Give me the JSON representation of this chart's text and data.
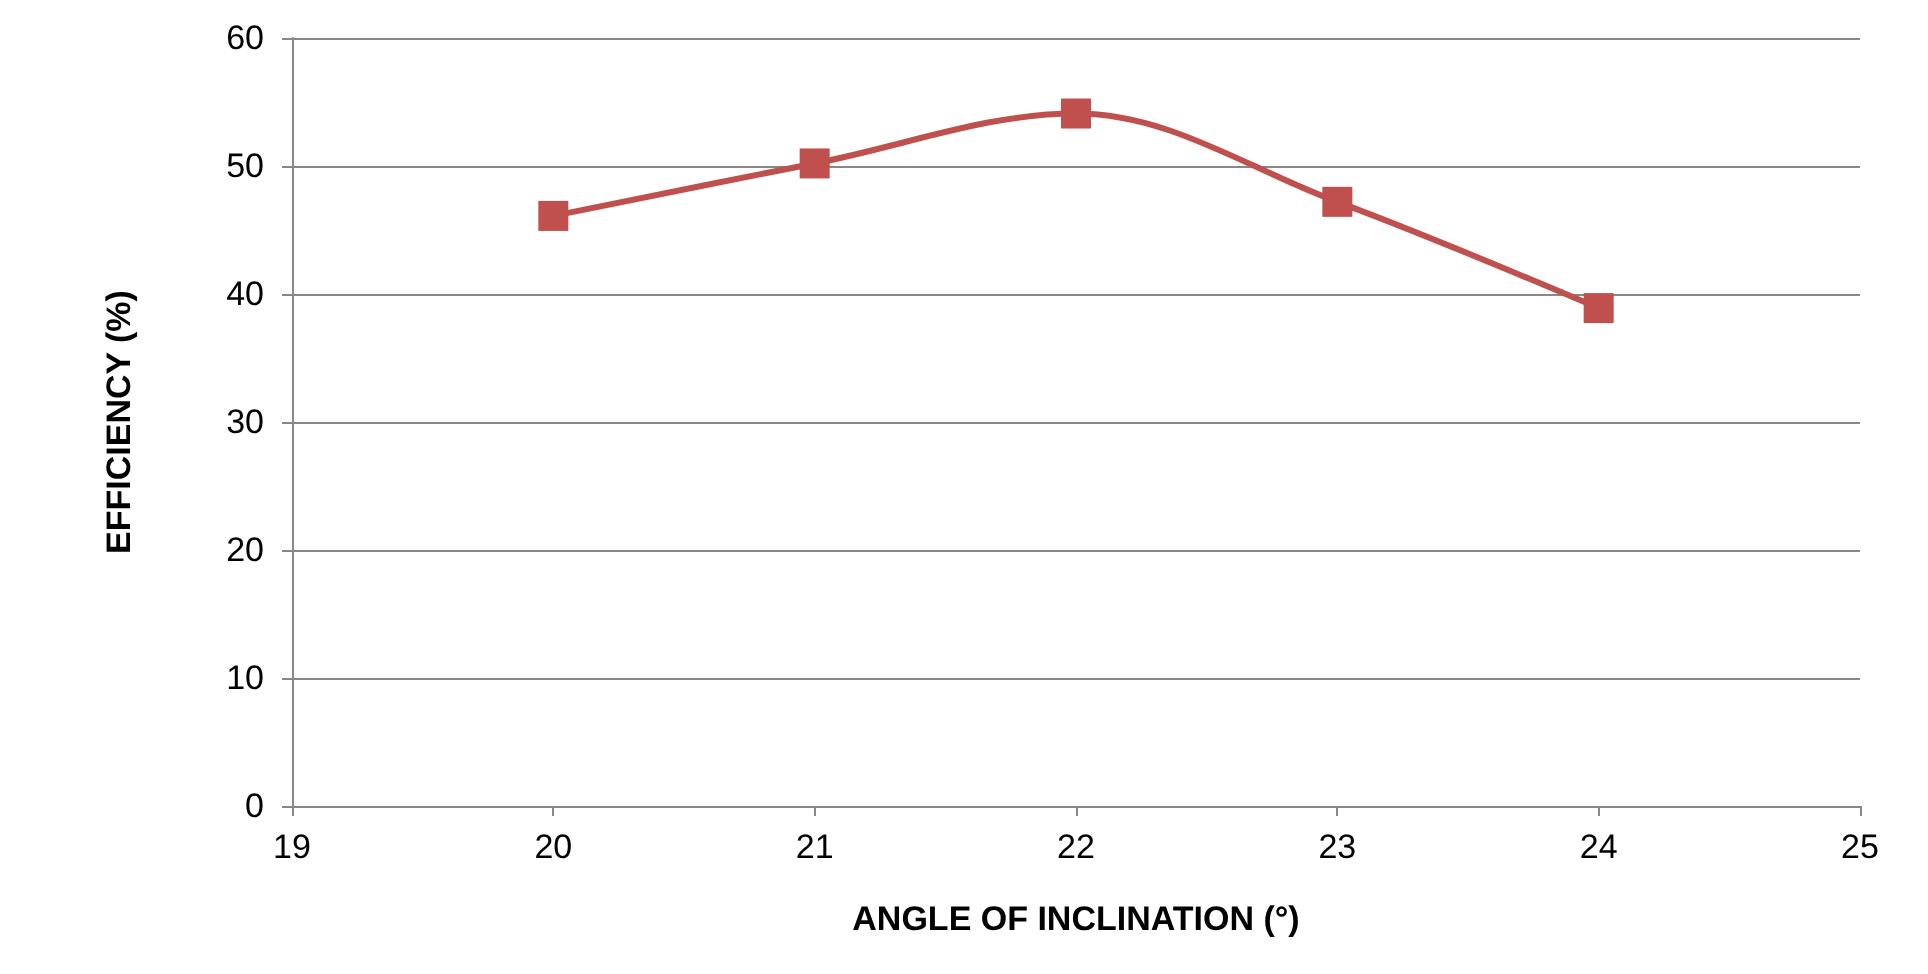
{
  "chart_data": {
    "type": "line",
    "xlabel": "ANGLE OF INCLINATION (°)",
    "ylabel": "EFFICIENCY (%)",
    "x": [
      20,
      21,
      22,
      23,
      24
    ],
    "series": [
      {
        "color": "#c0504d",
        "values": [
          46.1,
          50.2,
          54.1,
          47.2,
          38.9
        ]
      }
    ],
    "xlim": [
      19,
      25
    ],
    "xticks": [
      19,
      20,
      21,
      22,
      23,
      24,
      25
    ],
    "ylim": [
      0,
      60
    ],
    "yticks": [
      0,
      10,
      20,
      30,
      40,
      50,
      60
    ],
    "grid": "y",
    "marker": "square",
    "line_style": "solid"
  }
}
